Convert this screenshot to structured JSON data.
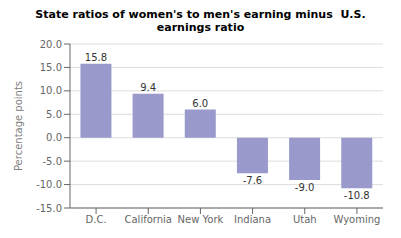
{
  "chart_data": {
    "type": "bar",
    "title": "State ratios of women's to men's earning minus  U.S.\nearnings ratio",
    "categories": [
      "D.C.",
      "California",
      "New York",
      "Indiana",
      "Utah",
      "Wyoming"
    ],
    "values": [
      15.8,
      9.4,
      6.0,
      -7.6,
      -9.0,
      -10.8
    ],
    "value_labels": [
      "15.8",
      "9.4",
      "6.0",
      "-7.6",
      "-9.0",
      "-10.8"
    ],
    "data_labels": true,
    "color": "#9999cc",
    "ylabel": "Percentage points",
    "ylim": [
      -15.0,
      20.0
    ],
    "yticks": [
      {
        "value": -15.0,
        "label": "-15.0"
      },
      {
        "value": -10.0,
        "label": "-10.0"
      },
      {
        "value": -5.0,
        "label": "-5.0"
      },
      {
        "value": 0.0,
        "label": "0.0"
      },
      {
        "value": 5.0,
        "label": "5.0"
      },
      {
        "value": 10.0,
        "label": "10.0"
      },
      {
        "value": 15.0,
        "label": "15.0"
      },
      {
        "value": 20.0,
        "label": "20.0"
      }
    ],
    "grid": true
  }
}
